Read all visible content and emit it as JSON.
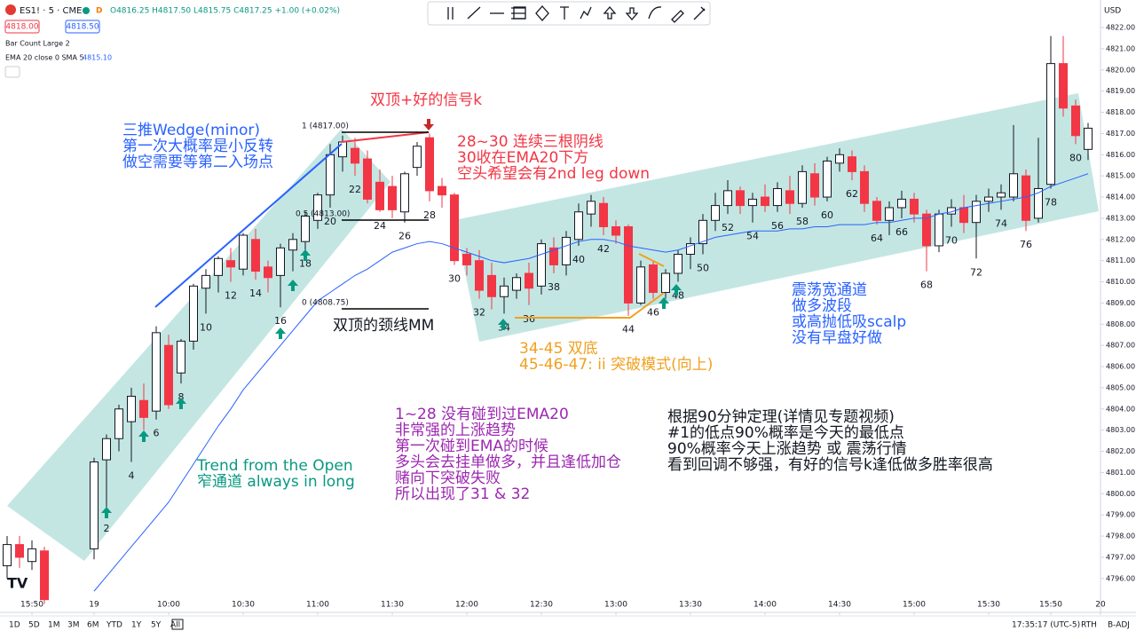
{
  "header": {
    "symbol": "ES1! · 5 · CME",
    "ohlc": "O4816.25 H4817.50 L4815.75 C4817.25 +1.00 (+0.02%)",
    "bid": "4818.00",
    "ask": "4818.50",
    "indicator_1": "Bar Count Large 2",
    "indicator_2": "EMA 20 close 0 SMA 5",
    "indicator_2_value": "4815.10",
    "currency": "USD"
  },
  "footer": {
    "ranges": [
      "1D",
      "5D",
      "1M",
      "3M",
      "6M",
      "YTD",
      "1Y",
      "5Y",
      "All"
    ],
    "clock": "17:35:17 (UTC-5)",
    "session": "RTH",
    "adjust": "B-ADJ"
  },
  "chart_data": {
    "type": "candlestick",
    "up_color": "#ffffff",
    "down_color": "#f23645",
    "ema_color": "#2962ff",
    "ylim": [
      4794.4,
      4823.3
    ],
    "yticks": [
      {
        "value": 4796,
        "label": "4796.00"
      },
      {
        "value": 4797,
        "label": "4797.00"
      },
      {
        "value": 4798,
        "label": "4798.00"
      },
      {
        "value": 4799,
        "label": "4799.00"
      },
      {
        "value": 4800,
        "label": "4800.00"
      },
      {
        "value": 4801,
        "label": "4801.00"
      },
      {
        "value": 4802,
        "label": "4802.00"
      },
      {
        "value": 4803,
        "label": "4803.00"
      },
      {
        "value": 4804,
        "label": "4804.00"
      },
      {
        "value": 4805,
        "label": "4805.00"
      },
      {
        "value": 4806,
        "label": "4806.00"
      },
      {
        "value": 4807,
        "label": "4807.00"
      },
      {
        "value": 4808,
        "label": "4808.00"
      },
      {
        "value": 4809,
        "label": "4809.00"
      },
      {
        "value": 4810,
        "label": "4810.00"
      },
      {
        "value": 4811,
        "label": "4811.00"
      },
      {
        "value": 4812,
        "label": "4812.00"
      },
      {
        "value": 4813,
        "label": "4813.00"
      },
      {
        "value": 4814,
        "label": "4814.00"
      },
      {
        "value": 4815,
        "label": "4815.00"
      },
      {
        "value": 4816,
        "label": "4816.00"
      },
      {
        "value": 4817,
        "label": "4817.00"
      },
      {
        "value": 4818,
        "label": "4818.00"
      },
      {
        "value": 4819,
        "label": "4819.00"
      },
      {
        "value": 4820,
        "label": "4820.00"
      },
      {
        "value": 4821,
        "label": "4821.00"
      },
      {
        "value": 4822,
        "label": "4822.00"
      }
    ],
    "xticks": [
      {
        "value": 2,
        "label": "15:50"
      },
      {
        "value": 7,
        "label": "19"
      },
      {
        "value": 13,
        "label": "10:00"
      },
      {
        "value": 19,
        "label": "10:30"
      },
      {
        "value": 25,
        "label": "11:00"
      },
      {
        "value": 31,
        "label": "11:30"
      },
      {
        "value": 37,
        "label": "12:00"
      },
      {
        "value": 43,
        "label": "12:30"
      },
      {
        "value": 49,
        "label": "13:00"
      },
      {
        "value": 55,
        "label": "13:30"
      },
      {
        "value": 61,
        "label": "14:00"
      },
      {
        "value": 67,
        "label": "14:30"
      },
      {
        "value": 73,
        "label": "15:00"
      },
      {
        "value": 79,
        "label": "15:30"
      },
      {
        "value": 84,
        "label": "15:50"
      },
      {
        "value": 88,
        "label": "20"
      }
    ],
    "open": [
      4796.6,
      4797.6,
      4796.8,
      4797.3,
      null,
      null,
      null,
      4797.4,
      4801.6,
      4802.6,
      4803.4,
      4804.4,
      4803.9,
      4807.0,
      4805.7,
      4807.2,
      4809.7,
      4810.3,
      4811.0,
      4810.6,
      4812.0,
      4810.7,
      4810.3,
      4811.5,
      4811.9,
      4812.9,
      4814.1,
      4815.9,
      4816.3,
      4815.8,
      4814.7,
      4814.5,
      4813.3,
      4815.4,
      4816.8,
      4814.5,
      4814.1,
      4811.3,
      4811.0,
      4810.3,
      4809.3,
      4809.6,
      4810.4,
      4809.8,
      4811.6,
      4810.8,
      4812.0,
      4813.2,
      4813.7,
      4812.6,
      4812.6,
      4809.0,
      4810.8,
      4809.5,
      4810.4,
      4811.3,
      4811.8,
      4812.9,
      4813.6,
      4814.3,
      4813.6,
      4814.0,
      4813.6,
      4814.3,
      4813.7,
      4815.1,
      4814.0,
      4815.6,
      4815.9,
      4815.2,
      4813.8,
      4812.9,
      4813.5,
      4813.9,
      4813.2,
      4811.7,
      4813.2,
      4813.5,
      4812.8,
      4813.8,
      4814.0,
      4814.0,
      4815.0,
      4813.0,
      4814.6,
      4820.3,
      4818.3,
      4816.25
    ],
    "high": [
      4798,
      4798,
      4797.8,
      4797.5,
      null,
      null,
      null,
      4801.7,
      4802.8,
      4804.2,
      4805,
      4805.2,
      4807.9,
      4807.5,
      4807.3,
      4809.9,
      4810.6,
      4811.2,
      4811.6,
      4812.3,
      4812.5,
      4811,
      4811.8,
      4812.3,
      4813.3,
      4814.2,
      4816.5,
      4816.9,
      4816.8,
      4816.2,
      4815.3,
      4815,
      4815.2,
      4816.6,
      4817.0,
      4814.9,
      4814.2,
      4811.6,
      4811.5,
      4810.9,
      4810.2,
      4810.4,
      4810.9,
      4812,
      4812.1,
      4812.4,
      4813.7,
      4814.1,
      4814.0,
      4812.9,
      4812.7,
      4811.0,
      4811.0,
      4810.6,
      4811.5,
      4812.1,
      4813.2,
      4814.2,
      4814.8,
      4814.5,
      4814.2,
      4814.6,
      4814.7,
      4815,
      4815.5,
      4815.6,
      4815.9,
      4816.3,
      4816.2,
      4815.5,
      4814.0,
      4813.8,
      4814.3,
      4814.2,
      4813.4,
      4813.4,
      4813.9,
      4814.1,
      4814.1,
      4814.4,
      4814.6,
      4817.4,
      4815.3,
      4816.8,
      4821.6,
      4821.6,
      4818.6,
      4817.5
    ],
    "low": [
      4796,
      4796.5,
      4796.4,
      4794.8,
      null,
      null,
      null,
      4796.9,
      4799,
      4802,
      4801.5,
      4803,
      4803.5,
      4804,
      4805.2,
      4806.8,
      4808.5,
      4809.5,
      4810,
      4810.3,
      4810.1,
      4809.5,
      4808.8,
      4810.5,
      4811.5,
      4812.5,
      4813.5,
      4815.2,
      4815,
      4813.7,
      4813.3,
      4813.0,
      4812.8,
      4815,
      4813.8,
      4813.5,
      4810.8,
      4810.3,
      4809.2,
      4808.7,
      4808.5,
      4809.2,
      4808.9,
      4809.4,
      4810.4,
      4810.3,
      4811.7,
      4812.6,
      4812.2,
      4811.8,
      4808.4,
      4808.9,
      4809.2,
      4809.2,
      4810.0,
      4810.6,
      4811.3,
      4812.4,
      4813.2,
      4813.2,
      4812.8,
      4813.3,
      4813.3,
      4813.2,
      4813.5,
      4813.6,
      4813.8,
      4815.2,
      4814.8,
      4813.3,
      4812.7,
      4812.2,
      4813,
      4812.8,
      4810.5,
      4811.4,
      4812.6,
      4812.3,
      4811.1,
      4813.3,
      4813.4,
      4813.8,
      4812.4,
      4812.8,
      4814.4,
      4817.8,
      4816.5,
      4815.75
    ],
    "close": [
      4797.6,
      4797.0,
      4797.4,
      4795.0,
      null,
      null,
      null,
      4801.5,
      4802.6,
      4804.0,
      4804.6,
      4803.6,
      4807.6,
      4804.2,
      4807.2,
      4809.8,
      4810.3,
      4811.1,
      4810.7,
      4812.2,
      4810.5,
      4810.2,
      4811.6,
      4812.0,
      4813.1,
      4814.1,
      4816.0,
      4816.6,
      4815.6,
      4813.9,
      4813.4,
      4813.4,
      4815.1,
      4816.4,
      4814.3,
      4814.1,
      4811.0,
      4810.8,
      4809.6,
      4809.3,
      4809.8,
      4810.2,
      4809.7,
      4811.8,
      4810.8,
      4812.1,
      4813.3,
      4813.8,
      4812.6,
      4812.2,
      4809.0,
      4810.7,
      4809.5,
      4810.4,
      4811.3,
      4811.8,
      4812.9,
      4813.6,
      4814.3,
      4813.6,
      4813.9,
      4813.6,
      4814.4,
      4813.7,
      4815.2,
      4814.0,
      4815.7,
      4816.0,
      4815.2,
      4813.7,
      4812.9,
      4813.5,
      4813.9,
      4813.2,
      4811.7,
      4813.2,
      4813.5,
      4812.8,
      4813.8,
      4814.0,
      4814.2,
      4815.1,
      4812.9,
      4814.4,
      4820.3,
      4818.2,
      4816.9,
      4817.25
    ],
    "ema": [
      null,
      null,
      null,
      null,
      null,
      null,
      null,
      4795.4,
      4796.1,
      4796.8,
      4797.5,
      4798.2,
      4798.9,
      4799.6,
      4800.5,
      4801.4,
      4802.3,
      4803.2,
      4804.0,
      4804.9,
      4805.6,
      4806.3,
      4807.0,
      4807.7,
      4808.4,
      4809.1,
      4809.5,
      4809.9,
      4810.3,
      4810.6,
      4811.0,
      4811.4,
      4811.6,
      4811.8,
      4811.9,
      4811.8,
      4811.6,
      4811.4,
      4811.2,
      4811.0,
      4810.9,
      4811.0,
      4811.1,
      4811.3,
      4811.5,
      4811.7,
      4811.9,
      4812.0,
      4812.0,
      4811.9,
      4811.7,
      4811.6,
      4811.5,
      4811.4,
      4811.5,
      4811.7,
      4811.9,
      4812.1,
      4812.2,
      4812.3,
      4812.4,
      4812.4,
      4812.4,
      4812.5,
      4812.5,
      4812.6,
      4812.6,
      4812.7,
      4812.7,
      4812.7,
      4812.8,
      4812.8,
      4812.9,
      4813.0,
      4813.0,
      4813.2,
      4813.3,
      4813.5,
      4813.6,
      4813.7,
      4813.8,
      4813.9,
      4814.0,
      4814.2,
      4814.5,
      4814.7,
      4814.9,
      4815.1
    ],
    "bar_numbers": [
      2,
      4,
      6,
      8,
      10,
      12,
      14,
      16,
      18,
      20,
      22,
      24,
      26,
      28,
      30,
      32,
      34,
      36,
      38,
      40,
      42,
      44,
      46,
      48,
      50,
      52,
      54,
      56,
      58,
      60,
      62,
      64,
      66,
      68,
      70,
      72,
      74,
      76,
      78,
      80
    ],
    "fib_labels": [
      "1 (4817.00)",
      "0.5 (4813.00)",
      "0 (4808.75)"
    ],
    "annotations": {
      "wedge": [
        "三推Wedge(minor)",
        "第一次大概率是小反转",
        "做空需要等第二入场点"
      ],
      "double_top": [
        "双顶+好的信号k"
      ],
      "bear": [
        "28~30 连续三根阴线",
        "30收在EMA20下方",
        "空头希望会有2nd leg down"
      ],
      "neckline": [
        "双顶的颈线MM"
      ],
      "double_bottom": [
        "34-45 双底",
        "45-46-47: ii 突破模式(向上)"
      ],
      "range": [
        "震荡宽通道",
        "做多波段",
        "或高抛低吸scalp",
        "没有早盘好做"
      ],
      "trend": [
        "Trend from the Open",
        "窄通道 always in long"
      ],
      "purple": [
        "1~28 没有碰到过EMA20",
        "非常强的上涨趋势",
        "第一次碰到EMA的时候",
        "多头会去挂单做多，并且逢低加仓",
        "赌向下突破失败",
        "所以出现了31 & 32"
      ],
      "black": [
        "根据90分钟定理(详情见专题视频)",
        "#1的低点90%概率是今天的最低点",
        "90%概率今天上涨趋势 或 震荡行情",
        "看到回调不够强，有好的信号k逢低做多胜率很高"
      ]
    }
  }
}
